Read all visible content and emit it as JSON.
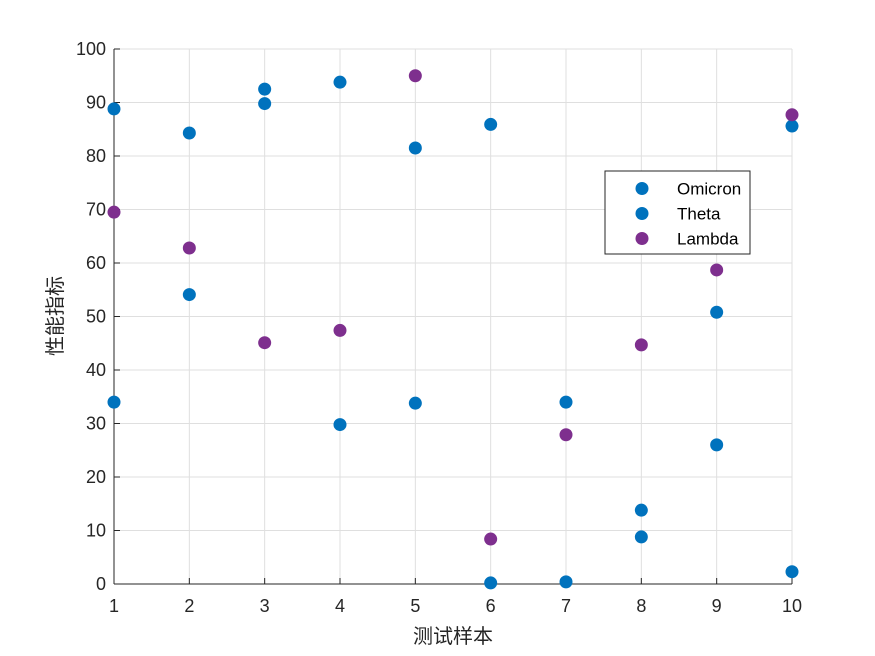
{
  "chart_data": {
    "type": "scatter",
    "title": "",
    "xlabel": "测试样本",
    "ylabel": "性能指标",
    "xlim": [
      1,
      10
    ],
    "ylim": [
      0,
      100
    ],
    "xticks": [
      1,
      2,
      3,
      4,
      5,
      6,
      7,
      8,
      9,
      10
    ],
    "yticks": [
      0,
      10,
      20,
      30,
      40,
      50,
      60,
      70,
      80,
      90,
      100
    ],
    "grid": true,
    "legend_position": "top-right",
    "series": [
      {
        "name": "Omicron",
        "color": "#0072BD",
        "x": [
          1,
          2,
          3,
          4,
          5,
          6,
          7,
          8,
          9,
          10
        ],
        "y": [
          34,
          84.3,
          89.8,
          29.8,
          81.5,
          0.2,
          34,
          13.8,
          26,
          2.3
        ]
      },
      {
        "name": "Theta",
        "color": "#0072BD",
        "x": [
          1,
          2,
          3,
          4,
          5,
          6,
          7,
          8,
          9,
          10
        ],
        "y": [
          88.8,
          54.1,
          92.5,
          93.8,
          33.8,
          85.9,
          0.4,
          8.8,
          50.8,
          85.6
        ]
      },
      {
        "name": "Lambda",
        "color": "#7E2F8E",
        "x": [
          1,
          2,
          3,
          4,
          5,
          6,
          7,
          8,
          9,
          10
        ],
        "y": [
          69.5,
          62.8,
          45.1,
          47.4,
          95,
          8.4,
          27.9,
          44.7,
          58.7,
          87.7
        ]
      }
    ]
  }
}
